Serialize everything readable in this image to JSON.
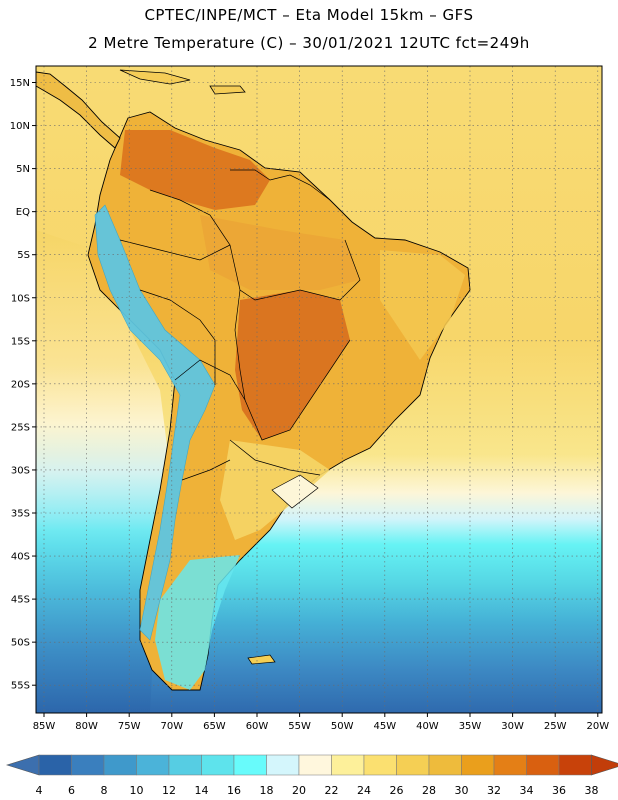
{
  "title_line1": "CPTEC/INPE/MCT –  Eta Model 15km – GFS",
  "title_line2": "2 Metre Temperature (C) – 30/01/2021 12UTC fct=249h",
  "lat_labels": [
    "15N",
    "10N",
    "5N",
    "EQ",
    "5S",
    "10S",
    "15S",
    "20S",
    "25S",
    "30S",
    "35S",
    "40S",
    "45S",
    "50S",
    "55S"
  ],
  "lat_values": [
    15,
    10,
    5,
    0,
    -5,
    -10,
    -15,
    -20,
    -25,
    -30,
    -35,
    -40,
    -45,
    -50,
    -55
  ],
  "lon_labels": [
    "85W",
    "80W",
    "75W",
    "70W",
    "65W",
    "60W",
    "55W",
    "50W",
    "45W",
    "40W",
    "35W",
    "30W",
    "25W",
    "20W"
  ],
  "lon_values": [
    -85,
    -80,
    -75,
    -70,
    -65,
    -60,
    -55,
    -50,
    -45,
    -40,
    -35,
    -30,
    -25,
    -20
  ],
  "colorbar": {
    "ticks": [
      "4",
      "6",
      "8",
      "10",
      "12",
      "14",
      "16",
      "18",
      "20",
      "22",
      "24",
      "26",
      "28",
      "30",
      "32",
      "34",
      "36",
      "38"
    ],
    "colors": [
      "#2a63a8",
      "#3a7fbe",
      "#3f99cb",
      "#4bb3d9",
      "#56cde3",
      "#5ee3ec",
      "#68fbfb",
      "#d4f6fc",
      "#fff7dd",
      "#fdf09a",
      "#fbe070",
      "#f5cf54",
      "#eebb3c",
      "#ea9f1c",
      "#e47f16",
      "#d96010",
      "#c8420a"
    ],
    "under_color": "#3c6fae",
    "over_color": "#c23d0a"
  }
}
